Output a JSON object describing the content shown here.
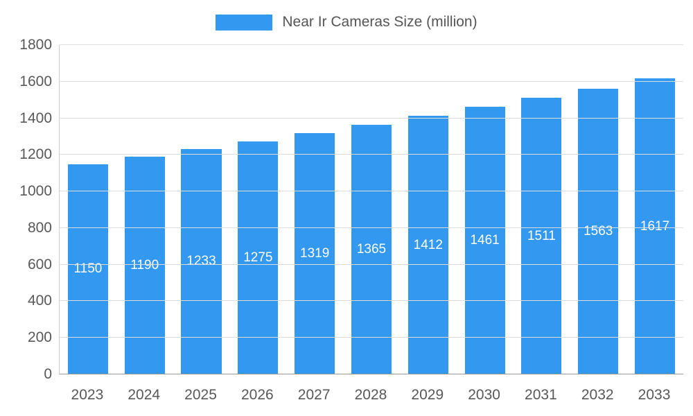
{
  "chart_data": {
    "type": "bar",
    "title": "Near Ir Cameras Size (million)",
    "categories": [
      "2023",
      "2024",
      "2025",
      "2026",
      "2027",
      "2028",
      "2029",
      "2030",
      "2031",
      "2032",
      "2033"
    ],
    "values": [
      1150,
      1190,
      1233,
      1275,
      1319,
      1365,
      1412,
      1461,
      1511,
      1563,
      1617
    ],
    "xlabel": "",
    "ylabel": "",
    "ylim": [
      0,
      1800
    ],
    "ytick_step": 200,
    "grid": true,
    "legend_position": "top-center",
    "bar_color": "#3398f0",
    "value_label_color": "#ffffff",
    "axis_label_color": "#58585a",
    "gridline_color": "#dddddd"
  }
}
